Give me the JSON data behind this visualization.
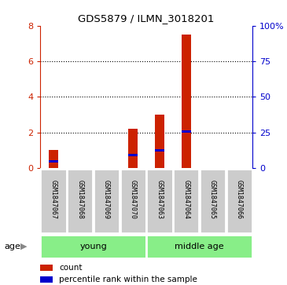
{
  "title": "GDS5879 / ILMN_3018201",
  "samples": [
    "GSM1847067",
    "GSM1847068",
    "GSM1847069",
    "GSM1847070",
    "GSM1847063",
    "GSM1847064",
    "GSM1847065",
    "GSM1847066"
  ],
  "counts": [
    1.0,
    0.0,
    0.0,
    2.2,
    3.0,
    7.5,
    0.0,
    0.0
  ],
  "percentile_ranks": [
    5.0,
    0.0,
    0.0,
    9.0,
    12.5,
    25.5,
    0.0,
    0.0
  ],
  "ylim_left": [
    0,
    8
  ],
  "ylim_right": [
    0,
    100
  ],
  "yticks_left": [
    0,
    2,
    4,
    6,
    8
  ],
  "yticks_right": [
    0,
    25,
    50,
    75,
    100
  ],
  "ytick_labels_right": [
    "0",
    "25",
    "50",
    "75",
    "100%"
  ],
  "bar_color": "#cc2200",
  "percentile_color": "#0000cc",
  "age_groups": [
    {
      "label": "young",
      "start": 0,
      "end": 4
    },
    {
      "label": "middle age",
      "start": 4,
      "end": 8
    }
  ],
  "age_group_color": "#88ee88",
  "sample_box_color": "#cccccc",
  "legend_count_label": "count",
  "legend_percentile_label": "percentile rank within the sample",
  "age_label": "age",
  "background_color": "#ffffff",
  "bar_width": 0.35
}
